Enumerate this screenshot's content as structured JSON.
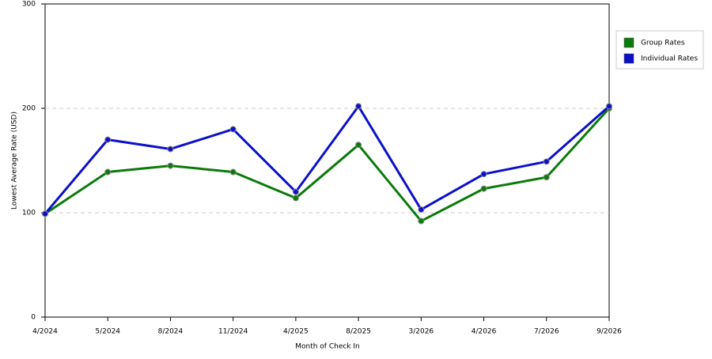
{
  "chart_data": {
    "type": "line",
    "x_label": "Month of Check In",
    "y_label": "Lowest Average Rate (USD)",
    "categories": [
      "4/2024",
      "5/2024",
      "8/2024",
      "11/2024",
      "4/2025",
      "8/2025",
      "3/2026",
      "4/2026",
      "7/2026",
      "9/2026"
    ],
    "series": [
      {
        "name": "Group Rates",
        "color": "#0a7a0a",
        "values": [
          99,
          139,
          145,
          139,
          114,
          165,
          92,
          123,
          134,
          200
        ]
      },
      {
        "name": "Individual Rates",
        "color": "#0b10c9",
        "values": [
          99,
          170,
          161,
          180,
          120,
          202,
          103,
          137,
          149,
          202
        ]
      }
    ],
    "ylim": [
      0,
      300
    ],
    "yticks": [
      0,
      100,
      200,
      300
    ],
    "grid": true,
    "legend": "right"
  }
}
